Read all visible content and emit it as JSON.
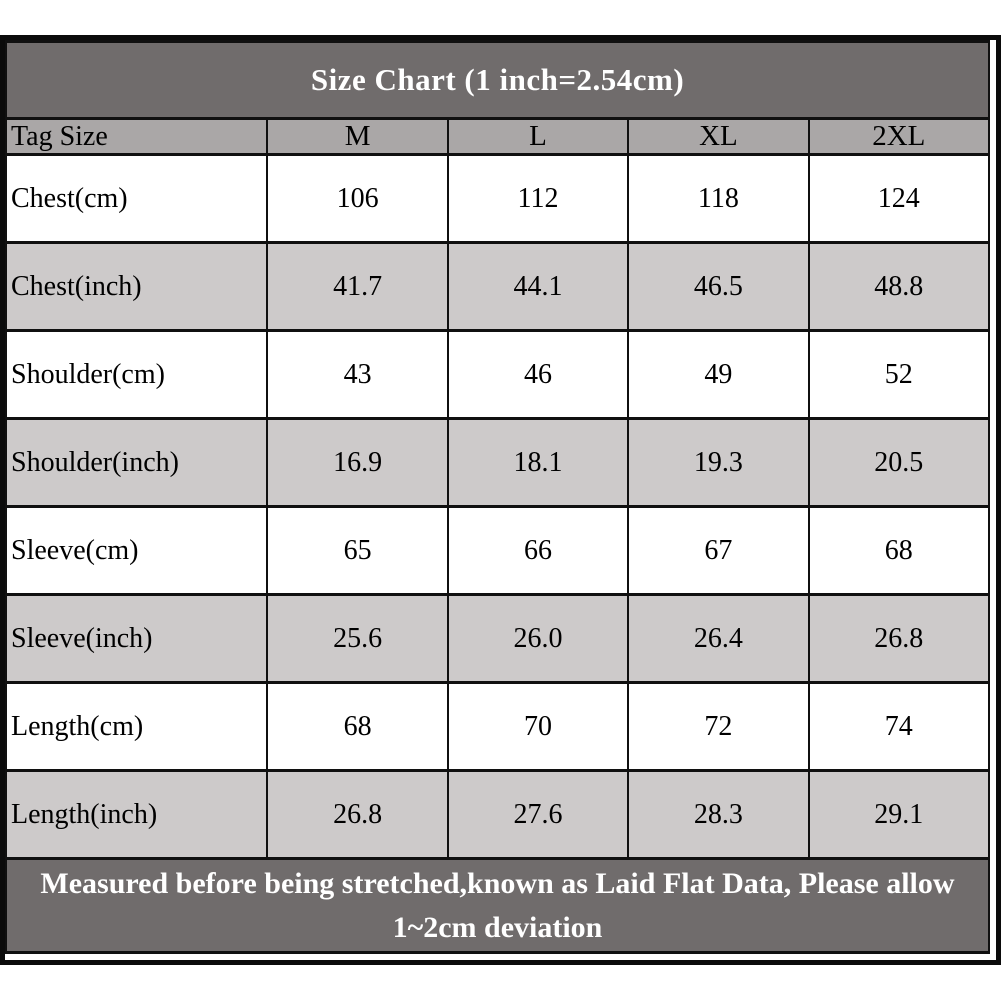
{
  "chart_data": {
    "type": "table",
    "title": "Size Chart (1 inch=2.54cm)",
    "columns": [
      "Tag Size",
      "M",
      "L",
      "XL",
      "2XL"
    ],
    "rows": [
      {
        "label": "Chest(cm)",
        "values": [
          "106",
          "112",
          "118",
          "124"
        ]
      },
      {
        "label": "Chest(inch)",
        "values": [
          "41.7",
          "44.1",
          "46.5",
          "48.8"
        ]
      },
      {
        "label": "Shoulder(cm)",
        "values": [
          "43",
          "46",
          "49",
          "52"
        ]
      },
      {
        "label": "Shoulder(inch)",
        "values": [
          "16.9",
          "18.1",
          "19.3",
          "20.5"
        ]
      },
      {
        "label": "Sleeve(cm)",
        "values": [
          "65",
          "66",
          "67",
          "68"
        ]
      },
      {
        "label": "Sleeve(inch)",
        "values": [
          "25.6",
          "26.0",
          "26.4",
          "26.8"
        ]
      },
      {
        "label": "Length(cm)",
        "values": [
          "68",
          "70",
          "72",
          "74"
        ]
      },
      {
        "label": "Length(inch)",
        "values": [
          "26.8",
          "27.6",
          "28.3",
          "29.1"
        ]
      }
    ],
    "footnote": "Measured before being stretched,known as Laid Flat Data, Please allow 1~2cm deviation",
    "layout_hints": {
      "grid": true,
      "striped_rows": true,
      "legend_position": "none"
    }
  },
  "colors": {
    "title_bg": "#706c6c",
    "title_text": "#ffffff",
    "header_row_bg": "#aaa7a7",
    "row_alt_bg": "#cdcaca",
    "row_bg": "#ffffff",
    "border": "#101010",
    "cell_text": "#000000",
    "footer_bg": "#706c6c",
    "footer_text": "#ffffff"
  }
}
